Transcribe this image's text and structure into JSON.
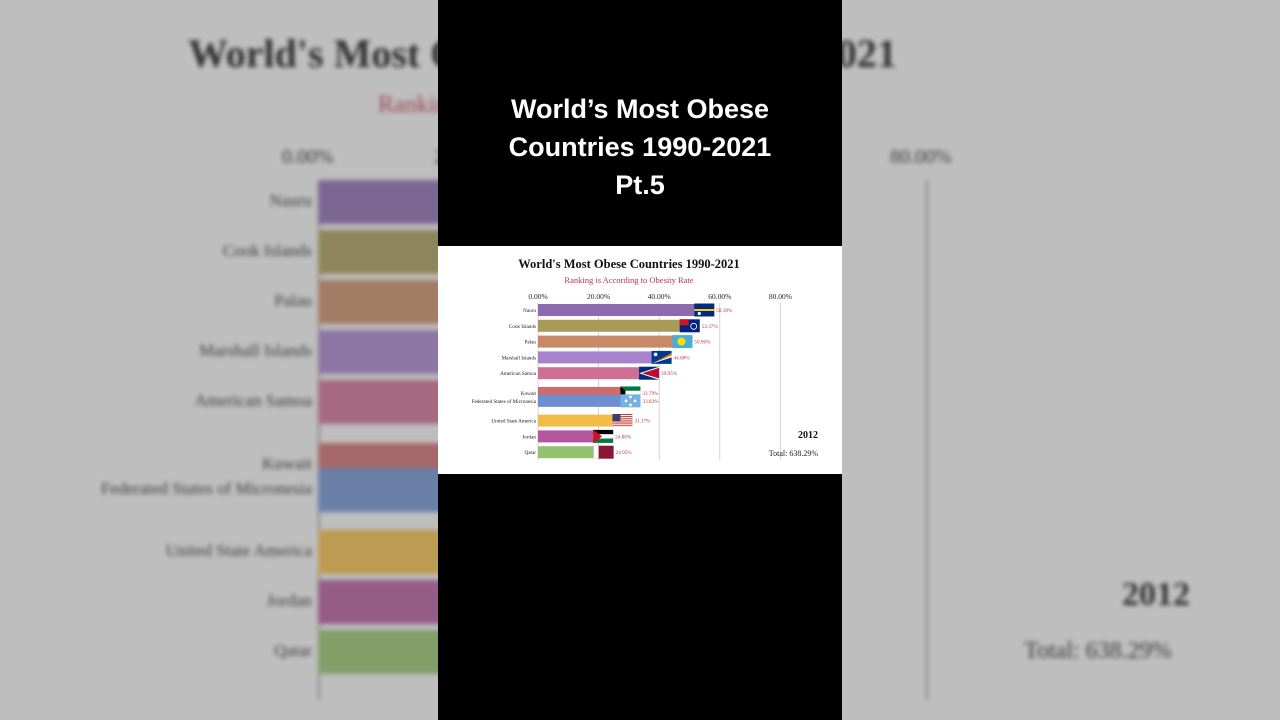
{
  "overlay": {
    "title": "World’s Most Obese\nCountries 1990-2021\nPt.5"
  },
  "colors": {
    "title_overlay": "#ffffff",
    "subtitle": "#b3344a",
    "value_label": "#b3344a",
    "panel_background": "#000000",
    "card_background": "#ffffff"
  },
  "chart_data": {
    "type": "bar",
    "orientation": "horizontal",
    "title": "World's Most Obese Countries 1990-2021",
    "subtitle": "Ranking is According to Obesity Rate",
    "xlim": [
      0,
      80
    ],
    "x_ticks": [
      "0.00%",
      "20.00%",
      "40.00%",
      "60.00%",
      "80.00%"
    ],
    "grid": true,
    "year": "2012",
    "total": "Total: 638.29%",
    "categories": [
      "Nauru",
      "Cook Islands",
      "Palau",
      "Marshall Islands",
      "American Samoa",
      "Kuwait",
      "Federated States of Micronesia",
      "United State America",
      "Jordan",
      "Qatar"
    ],
    "rank_positions": [
      1,
      2,
      3,
      4,
      5,
      6.25,
      6.75,
      8,
      9,
      10
    ],
    "values": [
      58.18,
      53.37,
      50.96,
      44.08,
      39.95,
      33.79,
      33.83,
      31.17,
      24.8,
      24.95
    ],
    "value_labels": [
      "58.18%",
      "53.37%",
      "50.96%",
      "44.08%",
      "39.95%",
      "33.79%",
      "33.83%",
      "31.17%",
      "24.80%",
      "24.95%"
    ],
    "bar_colors": [
      "#8b6ab0",
      "#a89a57",
      "#c88a66",
      "#a882cc",
      "#cf6f93",
      "#cf6b6b",
      "#6d8fd0",
      "#f1bd47",
      "#b2579c",
      "#94c16d"
    ],
    "flag_icons": [
      "nauru-flag-icon",
      "cook-islands-flag-icon",
      "palau-flag-icon",
      "marshall-islands-flag-icon",
      "american-samoa-flag-icon",
      "kuwait-flag-icon",
      "micronesia-flag-icon",
      "usa-flag-icon",
      "jordan-flag-icon",
      "qatar-flag-icon"
    ]
  }
}
